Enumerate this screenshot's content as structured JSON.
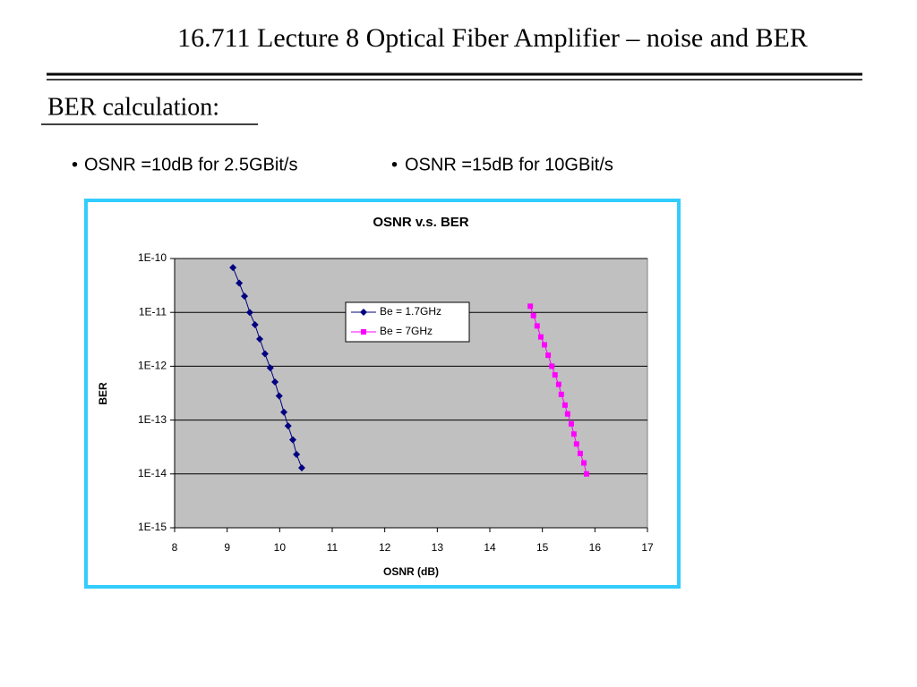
{
  "header": {
    "title": "16.711 Lecture 8 Optical Fiber Amplifier – noise and BER"
  },
  "section": {
    "title": "BER calculation:"
  },
  "bullets": [
    "OSNR =10dB for 2.5GBit/s",
    "OSNR =15dB for 10GBit/s"
  ],
  "chart_data": {
    "type": "scatter",
    "title": "OSNR v.s. BER",
    "x_label": "OSNR (dB)",
    "y_label": "BER",
    "y_log": true,
    "grid": true,
    "xlim": [
      8,
      17
    ],
    "xticks": [
      8,
      9,
      10,
      11,
      12,
      13,
      14,
      15,
      16,
      17
    ],
    "ylim": [
      1e-15,
      1e-10
    ],
    "yticks": [
      {
        "value": 1e-15,
        "label": "1E-15"
      },
      {
        "value": 1e-14,
        "label": "1E-14"
      },
      {
        "value": 1e-13,
        "label": "1E-13"
      },
      {
        "value": 1e-12,
        "label": "1E-12"
      },
      {
        "value": 1e-11,
        "label": "1E-11"
      },
      {
        "value": 1e-10,
        "label": "1E-10"
      }
    ],
    "series": [
      {
        "name": "Be = 1.7GHz",
        "color": "#000080",
        "marker": "diamond",
        "x": [
          9.11,
          9.23,
          9.33,
          9.43,
          9.53,
          9.62,
          9.72,
          9.82,
          9.91,
          9.99,
          10.08,
          10.16,
          10.25,
          10.32,
          10.42
        ],
        "values": [
          6.8e-11,
          3.5e-11,
          2e-11,
          1e-11,
          5.9e-12,
          3.2e-12,
          1.7e-12,
          9.3e-13,
          5.1e-13,
          2.8e-13,
          1.4e-13,
          7.8e-14,
          4.3e-14,
          2.3e-14,
          1.3e-14
        ]
      },
      {
        "name": "Be = 7GHz",
        "color": "#ff00ff",
        "marker": "square",
        "x": [
          14.77,
          14.83,
          14.9,
          14.97,
          15.04,
          15.11,
          15.18,
          15.24,
          15.31,
          15.36,
          15.43,
          15.48,
          15.55,
          15.6,
          15.65,
          15.72,
          15.79,
          15.84
        ],
        "values": [
          1.3e-11,
          8.7e-12,
          5.6e-12,
          3.5e-12,
          2.5e-12,
          1.6e-12,
          1e-12,
          6.9e-13,
          4.6e-13,
          3e-13,
          1.9e-13,
          1.3e-13,
          8.5e-14,
          5.5e-14,
          3.6e-14,
          2.4e-14,
          1.6e-14,
          1e-14
        ]
      }
    ]
  }
}
